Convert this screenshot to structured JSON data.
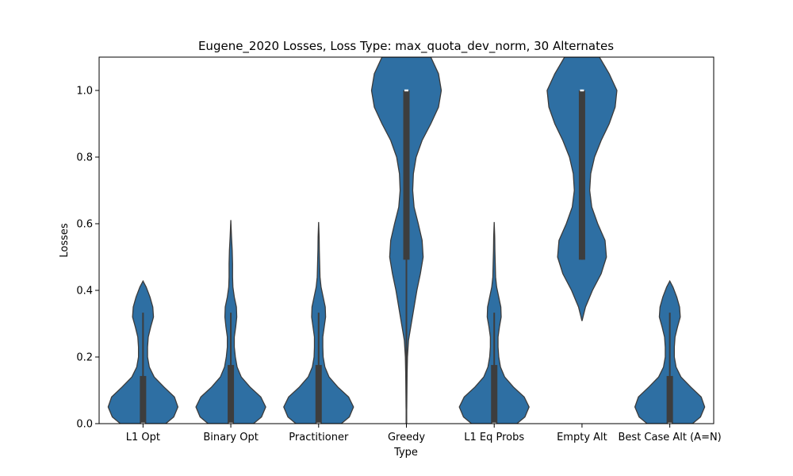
{
  "chart_data": {
    "type": "violin",
    "title": "Eugene_2020 Losses, Loss Type: max_quota_dev_norm, 30 Alternates",
    "xlabel": "Type",
    "ylabel": "Losses",
    "ylim": [
      0,
      1.1
    ],
    "yticks": [
      0.0,
      0.2,
      0.4,
      0.6,
      0.8,
      1.0
    ],
    "ytick_labels": [
      "0.0",
      "0.2",
      "0.4",
      "0.6",
      "0.8",
      "1.0"
    ],
    "color": "#2e6fa3",
    "categories": [
      "L1 Opt",
      "Binary Opt",
      "Practitioner",
      "Greedy",
      "L1 Eq Probs",
      "Empty Alt",
      "Best Case Alt (A=N)"
    ],
    "series": [
      {
        "name": "L1 Opt",
        "stats": {
          "min": 0.0,
          "q1": 0.0,
          "median": 0.0,
          "q3": 0.143,
          "max": 0.333
        },
        "density": [
          [
            0.0,
            0.65
          ],
          [
            0.02,
            0.88
          ],
          [
            0.05,
            1.0
          ],
          [
            0.08,
            0.9
          ],
          [
            0.11,
            0.6
          ],
          [
            0.14,
            0.32
          ],
          [
            0.17,
            0.18
          ],
          [
            0.2,
            0.13
          ],
          [
            0.23,
            0.13
          ],
          [
            0.26,
            0.15
          ],
          [
            0.29,
            0.22
          ],
          [
            0.32,
            0.3
          ],
          [
            0.35,
            0.28
          ],
          [
            0.38,
            0.2
          ],
          [
            0.41,
            0.09
          ],
          [
            0.428,
            0.0
          ]
        ]
      },
      {
        "name": "Binary Opt",
        "stats": {
          "min": 0.0,
          "q1": 0.0,
          "median": 0.0,
          "q3": 0.176,
          "max": 0.333
        },
        "density": [
          [
            0.0,
            0.65
          ],
          [
            0.02,
            0.88
          ],
          [
            0.05,
            1.0
          ],
          [
            0.08,
            0.86
          ],
          [
            0.11,
            0.55
          ],
          [
            0.14,
            0.3
          ],
          [
            0.17,
            0.18
          ],
          [
            0.2,
            0.13
          ],
          [
            0.23,
            0.1
          ],
          [
            0.26,
            0.1
          ],
          [
            0.29,
            0.14
          ],
          [
            0.32,
            0.17
          ],
          [
            0.35,
            0.16
          ],
          [
            0.38,
            0.1
          ],
          [
            0.41,
            0.06
          ],
          [
            0.44,
            0.05
          ],
          [
            0.48,
            0.05
          ],
          [
            0.52,
            0.04
          ],
          [
            0.56,
            0.02
          ],
          [
            0.611,
            0.0
          ]
        ]
      },
      {
        "name": "Practitioner",
        "stats": {
          "min": 0.0,
          "q1": 0.0,
          "median": 0.0,
          "q3": 0.176,
          "max": 0.333
        },
        "density": [
          [
            0.0,
            0.65
          ],
          [
            0.02,
            0.88
          ],
          [
            0.05,
            1.0
          ],
          [
            0.08,
            0.86
          ],
          [
            0.11,
            0.55
          ],
          [
            0.14,
            0.3
          ],
          [
            0.17,
            0.18
          ],
          [
            0.2,
            0.13
          ],
          [
            0.23,
            0.12
          ],
          [
            0.26,
            0.12
          ],
          [
            0.29,
            0.16
          ],
          [
            0.32,
            0.2
          ],
          [
            0.35,
            0.19
          ],
          [
            0.38,
            0.13
          ],
          [
            0.41,
            0.07
          ],
          [
            0.44,
            0.04
          ],
          [
            0.48,
            0.03
          ],
          [
            0.52,
            0.02
          ],
          [
            0.56,
            0.015
          ],
          [
            0.605,
            0.0
          ]
        ]
      },
      {
        "name": "Greedy",
        "stats": {
          "min": 0.0,
          "q1": 0.492,
          "median": 1.0,
          "q3": 1.0,
          "max": 1.0
        },
        "density": [
          [
            0.0,
            0.0
          ],
          [
            0.05,
            0.01
          ],
          [
            0.1,
            0.015
          ],
          [
            0.15,
            0.02
          ],
          [
            0.2,
            0.03
          ],
          [
            0.25,
            0.06
          ],
          [
            0.3,
            0.14
          ],
          [
            0.35,
            0.22
          ],
          [
            0.4,
            0.3
          ],
          [
            0.45,
            0.4
          ],
          [
            0.5,
            0.48
          ],
          [
            0.55,
            0.45
          ],
          [
            0.6,
            0.34
          ],
          [
            0.65,
            0.22
          ],
          [
            0.7,
            0.18
          ],
          [
            0.75,
            0.2
          ],
          [
            0.8,
            0.28
          ],
          [
            0.85,
            0.45
          ],
          [
            0.9,
            0.7
          ],
          [
            0.95,
            0.92
          ],
          [
            1.0,
            1.0
          ],
          [
            1.05,
            0.92
          ],
          [
            1.1,
            0.7
          ]
        ]
      },
      {
        "name": "L1 Eq Probs",
        "stats": {
          "min": 0.0,
          "q1": 0.0,
          "median": 0.0,
          "q3": 0.176,
          "max": 0.333
        },
        "density": [
          [
            0.0,
            0.65
          ],
          [
            0.02,
            0.88
          ],
          [
            0.05,
            1.0
          ],
          [
            0.08,
            0.86
          ],
          [
            0.11,
            0.55
          ],
          [
            0.14,
            0.3
          ],
          [
            0.17,
            0.18
          ],
          [
            0.2,
            0.13
          ],
          [
            0.23,
            0.11
          ],
          [
            0.26,
            0.11
          ],
          [
            0.29,
            0.15
          ],
          [
            0.32,
            0.2
          ],
          [
            0.35,
            0.19
          ],
          [
            0.38,
            0.13
          ],
          [
            0.41,
            0.07
          ],
          [
            0.44,
            0.04
          ],
          [
            0.48,
            0.03
          ],
          [
            0.52,
            0.02
          ],
          [
            0.56,
            0.015
          ],
          [
            0.605,
            0.0
          ]
        ]
      },
      {
        "name": "Empty Alt",
        "stats": {
          "min": 0.492,
          "q1": 0.492,
          "median": 1.0,
          "q3": 1.0,
          "max": 1.0
        },
        "density": [
          [
            0.308,
            0.0
          ],
          [
            0.35,
            0.1
          ],
          [
            0.4,
            0.3
          ],
          [
            0.45,
            0.55
          ],
          [
            0.5,
            0.7
          ],
          [
            0.55,
            0.66
          ],
          [
            0.6,
            0.45
          ],
          [
            0.65,
            0.28
          ],
          [
            0.7,
            0.22
          ],
          [
            0.75,
            0.25
          ],
          [
            0.8,
            0.36
          ],
          [
            0.85,
            0.55
          ],
          [
            0.9,
            0.78
          ],
          [
            0.95,
            0.95
          ],
          [
            1.0,
            1.0
          ],
          [
            1.05,
            0.78
          ],
          [
            1.1,
            0.5
          ]
        ]
      },
      {
        "name": "Best Case Alt (A=N)",
        "stats": {
          "min": 0.0,
          "q1": 0.0,
          "median": 0.0,
          "q3": 0.143,
          "max": 0.333
        },
        "density": [
          [
            0.0,
            0.65
          ],
          [
            0.02,
            0.88
          ],
          [
            0.05,
            1.0
          ],
          [
            0.08,
            0.9
          ],
          [
            0.11,
            0.6
          ],
          [
            0.14,
            0.32
          ],
          [
            0.17,
            0.18
          ],
          [
            0.2,
            0.13
          ],
          [
            0.23,
            0.13
          ],
          [
            0.26,
            0.15
          ],
          [
            0.29,
            0.22
          ],
          [
            0.32,
            0.3
          ],
          [
            0.35,
            0.28
          ],
          [
            0.38,
            0.2
          ],
          [
            0.41,
            0.09
          ],
          [
            0.428,
            0.0
          ]
        ]
      }
    ]
  }
}
